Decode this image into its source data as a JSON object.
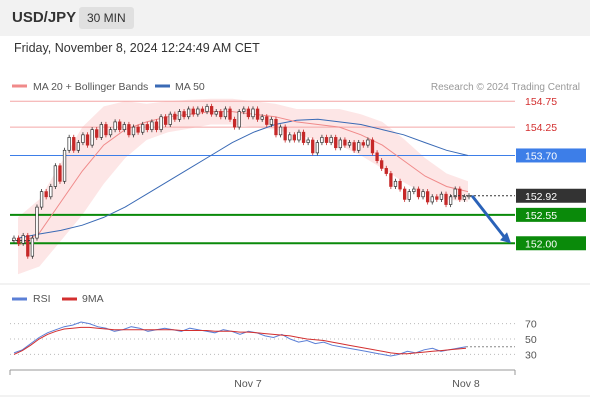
{
  "header": {
    "symbol": "USD/JPY",
    "interval": "30 MIN"
  },
  "timestamp": "Friday, November 8, 2024 12:24:49 AM CET",
  "legend": {
    "ma20_label": "MA 20 + Bollinger Bands",
    "ma50_label": "MA 50",
    "credit": "Research © 2024 Trading Central",
    "rsi_label": "RSI",
    "ma9_label": "9MA"
  },
  "colors": {
    "bollinger_fill": "#fde3e3",
    "ma20": "#f08a8a",
    "ma50": "#3a6ab5",
    "resistance": "#f4a6a6",
    "pivot": "#3d7ee8",
    "support": "#0a8a0a",
    "candle_up": "#333333",
    "candle_down": "#c62828",
    "rsi": "#5b7fd6",
    "rsi_ma": "#d32f2f",
    "arrow": "#2a62b8"
  },
  "chart_data": [
    {
      "type": "line",
      "title": "USD/JPY 30 MIN",
      "x_ticks": [
        "Nov 7",
        "Nov 8"
      ],
      "ylim": [
        151.25,
        155.2
      ],
      "last_price": 152.92,
      "levels": [
        {
          "value": 154.75,
          "label": "154.75",
          "kind": "resistance"
        },
        {
          "value": 154.25,
          "label": "154.25",
          "kind": "resistance"
        },
        {
          "value": 153.7,
          "label": "153.70",
          "kind": "pivot"
        },
        {
          "value": 152.55,
          "label": "152.55",
          "kind": "support"
        },
        {
          "value": 152.0,
          "label": "152.00",
          "kind": "support"
        }
      ],
      "last_price_label": "152.92",
      "series": [
        {
          "name": "MA 50",
          "values": [
            152.1,
            152.18,
            152.25,
            152.35,
            152.5,
            152.7,
            152.95,
            153.2,
            153.45,
            153.7,
            153.95,
            154.15,
            154.3,
            154.38,
            154.4,
            154.35,
            154.3,
            154.2,
            154.1,
            153.95,
            153.8,
            153.7
          ]
        },
        {
          "name": "MA 20 + Bollinger Bands",
          "values": [
            151.95,
            152.2,
            152.8,
            153.4,
            153.9,
            154.2,
            154.35,
            154.45,
            154.5,
            154.55,
            154.55,
            154.5,
            154.45,
            154.35,
            154.3,
            154.25,
            154.1,
            153.9,
            153.6,
            153.3,
            153.1,
            153.0
          ]
        }
      ],
      "candles": [
        [
          152.05,
          152.1
        ],
        [
          152.1,
          152.0
        ],
        [
          152.0,
          152.15
        ],
        [
          152.15,
          151.75
        ],
        [
          151.75,
          152.1
        ],
        [
          152.1,
          152.7
        ],
        [
          152.7,
          153.0
        ],
        [
          153.0,
          152.9
        ],
        [
          152.9,
          153.1
        ],
        [
          153.1,
          153.5
        ],
        [
          153.5,
          153.2
        ],
        [
          153.2,
          153.8
        ],
        [
          153.8,
          154.05
        ],
        [
          154.05,
          153.8
        ],
        [
          153.8,
          153.95
        ],
        [
          153.95,
          154.1
        ],
        [
          154.1,
          153.9
        ],
        [
          153.9,
          154.2
        ],
        [
          154.2,
          154.05
        ],
        [
          154.05,
          154.3
        ],
        [
          154.3,
          154.1
        ],
        [
          154.1,
          154.2
        ],
        [
          154.2,
          154.35
        ],
        [
          154.35,
          154.2
        ],
        [
          154.2,
          154.3
        ],
        [
          154.3,
          154.1
        ],
        [
          154.1,
          154.25
        ],
        [
          154.25,
          154.15
        ],
        [
          154.15,
          154.3
        ],
        [
          154.3,
          154.2
        ],
        [
          154.2,
          154.35
        ],
        [
          154.35,
          154.2
        ],
        [
          154.2,
          154.45
        ],
        [
          154.45,
          154.3
        ],
        [
          154.3,
          154.5
        ],
        [
          154.5,
          154.4
        ],
        [
          154.4,
          154.55
        ],
        [
          154.55,
          154.45
        ],
        [
          154.45,
          154.6
        ],
        [
          154.6,
          154.5
        ],
        [
          154.5,
          154.6
        ],
        [
          154.6,
          154.55
        ],
        [
          154.55,
          154.65
        ],
        [
          154.65,
          154.5
        ],
        [
          154.5,
          154.55
        ],
        [
          154.55,
          154.45
        ],
        [
          154.45,
          154.6
        ],
        [
          154.6,
          154.4
        ],
        [
          154.4,
          154.25
        ],
        [
          154.25,
          154.55
        ],
        [
          154.55,
          154.6
        ],
        [
          154.6,
          154.45
        ],
        [
          154.45,
          154.6
        ],
        [
          154.6,
          154.4
        ],
        [
          154.4,
          154.45
        ],
        [
          154.45,
          154.3
        ],
        [
          154.3,
          154.4
        ],
        [
          154.4,
          154.1
        ],
        [
          154.1,
          154.25
        ],
        [
          154.25,
          154.0
        ],
        [
          154.0,
          154.1
        ],
        [
          154.1,
          154.0
        ],
        [
          154.0,
          154.15
        ],
        [
          154.15,
          153.95
        ],
        [
          153.95,
          154.0
        ],
        [
          154.0,
          153.75
        ],
        [
          153.75,
          153.95
        ],
        [
          153.95,
          154.05
        ],
        [
          154.05,
          153.95
        ],
        [
          153.95,
          154.05
        ],
        [
          154.05,
          153.85
        ],
        [
          153.85,
          154.0
        ],
        [
          154.0,
          153.9
        ],
        [
          153.9,
          153.95
        ],
        [
          153.95,
          153.8
        ],
        [
          153.8,
          153.95
        ],
        [
          153.95,
          153.9
        ],
        [
          153.9,
          154.0
        ],
        [
          154.0,
          153.75
        ],
        [
          153.75,
          153.6
        ],
        [
          153.6,
          153.45
        ],
        [
          153.45,
          153.35
        ],
        [
          153.35,
          153.1
        ],
        [
          153.1,
          153.2
        ],
        [
          153.2,
          153.05
        ],
        [
          153.05,
          152.85
        ],
        [
          152.85,
          153.0
        ],
        [
          153.0,
          153.05
        ],
        [
          153.05,
          152.9
        ],
        [
          152.9,
          153.0
        ],
        [
          153.0,
          152.8
        ],
        [
          152.8,
          152.9
        ],
        [
          152.9,
          152.85
        ],
        [
          152.85,
          152.95
        ],
        [
          152.95,
          152.75
        ],
        [
          152.75,
          152.9
        ],
        [
          152.9,
          153.05
        ],
        [
          153.05,
          152.85
        ],
        [
          152.85,
          152.9
        ],
        [
          152.9,
          152.92
        ]
      ]
    },
    {
      "type": "line",
      "title": "RSI",
      "ylim": [
        15,
        85
      ],
      "y_ticks": [
        70,
        50,
        30
      ],
      "series": [
        {
          "name": "RSI",
          "values": [
            32,
            36,
            44,
            52,
            58,
            62,
            66,
            68,
            72,
            70,
            66,
            64,
            60,
            62,
            66,
            64,
            60,
            62,
            64,
            62,
            60,
            64,
            62,
            60,
            58,
            62,
            60,
            56,
            60,
            58,
            54,
            52,
            56,
            50,
            46,
            48,
            44,
            46,
            42,
            40,
            38,
            36,
            34,
            32,
            30,
            28,
            30,
            34,
            32,
            36,
            38,
            34,
            36,
            38,
            40
          ]
        },
        {
          "name": "9MA",
          "values": [
            30,
            35,
            42,
            50,
            56,
            60,
            63,
            64,
            65,
            65,
            64,
            63,
            62,
            62,
            62,
            62,
            62,
            62,
            62,
            62,
            61,
            61,
            61,
            61,
            60,
            60,
            60,
            59,
            59,
            58,
            57,
            56,
            55,
            54,
            52,
            50,
            49,
            48,
            46,
            44,
            42,
            40,
            38,
            36,
            34,
            32,
            31,
            31,
            32,
            33,
            34,
            35,
            36,
            37,
            38
          ]
        }
      ]
    }
  ]
}
